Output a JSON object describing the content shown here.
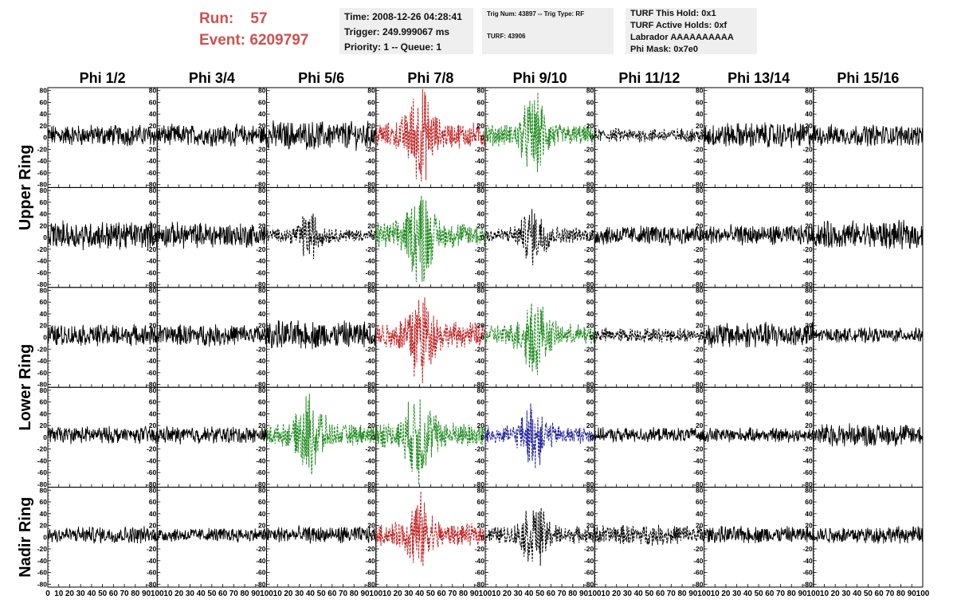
{
  "header": {
    "run_label": "Run:",
    "run_value": "57",
    "event_label": "Event:",
    "event_value": "6209797",
    "time_line": "Time: 2008-12-26 04:28:41",
    "trigger_line": "Trigger: 249.999067 ms",
    "priority_line": "Priority: 1 -- Queue: 1",
    "trig_line": "Trig Num: 43897 -- Trig Type: RF",
    "turf_line": "TURF: 43906",
    "hold_line": "TURF This Hold: 0x1",
    "active_line": "TURF Active Holds: 0xf",
    "labrador_line": "Labrador AAAAAAAAAA",
    "phimask_line": "Phi Mask: 0x7e0"
  },
  "colors": {
    "header_text": "#d0504f",
    "info_bg": "#efefef",
    "black": "#000000",
    "red": "#c21f1f",
    "green": "#1c8a1c",
    "blue": "#1f1f9a"
  },
  "chart_data": {
    "type": "line",
    "columns": [
      "Phi 1/2",
      "Phi 3/4",
      "Phi 5/6",
      "Phi 7/8",
      "Phi 9/10",
      "Phi 11/12",
      "Phi 13/14",
      "Phi 15/16"
    ],
    "ring_labels": [
      "Upper Ring",
      "Lower Ring",
      "Nadir Ring"
    ],
    "xlim": [
      0,
      100
    ],
    "ylim": [
      -85,
      85
    ],
    "y_ticks": [
      80,
      60,
      40,
      20,
      0,
      -20,
      -40,
      -60,
      -80
    ],
    "x_ticks": [
      0,
      10,
      20,
      30,
      40,
      50,
      60,
      70,
      80,
      90,
      100
    ],
    "x_tick_labels": [
      "0",
      "10",
      "20",
      "30",
      "40",
      "50",
      "60",
      "70",
      "80",
      "90",
      "100"
    ],
    "rows": [
      [
        "black",
        "black",
        "black",
        "red",
        "green",
        "black-dotted",
        "black",
        "black"
      ],
      [
        "black",
        "black",
        "black-dotted",
        "green",
        "black-dotted",
        "black",
        "black",
        "black"
      ],
      [
        "black",
        "black",
        "black",
        "red",
        "green",
        "black-dotted",
        "black",
        "black"
      ],
      [
        "black",
        "black",
        "green",
        "green",
        "blue",
        "black",
        "black",
        "black"
      ],
      [
        "black",
        "black",
        "black",
        "red",
        "black-dotted",
        "black-dotted",
        "black",
        "black"
      ]
    ],
    "amplitudes": [
      [
        15,
        15,
        20,
        30,
        25,
        10,
        18,
        15
      ],
      [
        20,
        18,
        15,
        30,
        18,
        14,
        14,
        20
      ],
      [
        15,
        15,
        20,
        30,
        25,
        10,
        18,
        10
      ],
      [
        12,
        12,
        25,
        30,
        20,
        10,
        10,
        16
      ],
      [
        12,
        10,
        12,
        25,
        20,
        14,
        12,
        12
      ]
    ],
    "peak_position": [
      0,
      0,
      40,
      40,
      45,
      0,
      0,
      0
    ]
  }
}
